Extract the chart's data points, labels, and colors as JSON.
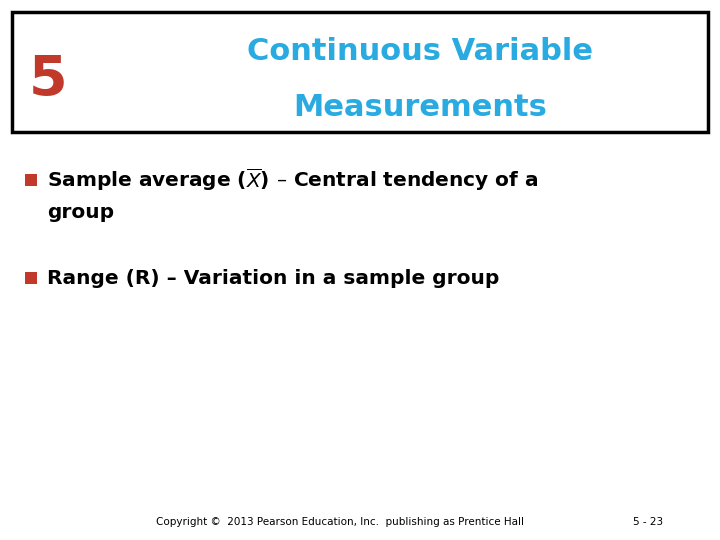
{
  "title_number": "5",
  "title_number_color": "#c0392b",
  "title_line1": "Continuous Variable",
  "title_line2": "Measurements",
  "title_color": "#29abe2",
  "header_box_color": "#000000",
  "background_color": "#ffffff",
  "bullet_color": "#c0392b",
  "bullet1_part1": "Sample average (",
  "bullet1_xbar": "$\\overline{X}$",
  "bullet1_part2": ") – Central tendency of a",
  "bullet1_line2": "group",
  "bullet2": "Range (R) – Variation in a sample group",
  "bullet_text_color": "#000000",
  "footer_left": "Copyright ©  2013 Pearson Education, Inc.  publishing as Prentice Hall",
  "footer_right": "5 - 23",
  "footer_color": "#000000"
}
